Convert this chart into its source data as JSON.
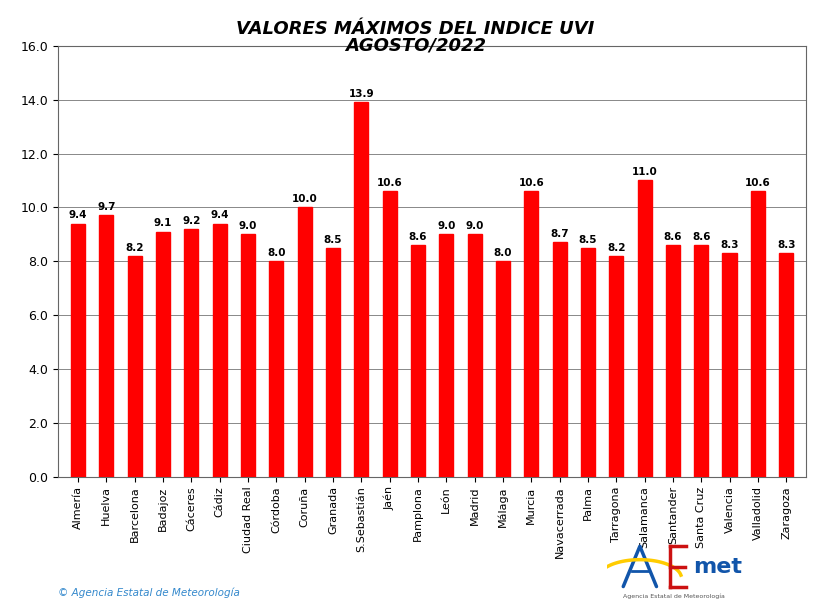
{
  "title_line1": "VALORES MÁXIMOS DEL INDICE UVI",
  "title_line2": "AGOSTO/2022",
  "categories": [
    "Almería",
    "Huelva",
    "Barcelona",
    "Badajoz",
    "Cáceres",
    "Cádiz",
    "Ciudad Real",
    "Córdoba",
    "Coruña",
    "Granada",
    "S.Sebastián",
    "Jaén",
    "Pamplona",
    "León",
    "Madrid",
    "Málaga",
    "Murcia",
    "Navacerrada",
    "Palma",
    "Tarragona",
    "Salamanca",
    "Santander",
    "Santa Cruz",
    "Valencia",
    "Valladolid",
    "Zaragoza"
  ],
  "values": [
    9.4,
    9.7,
    8.2,
    9.1,
    9.2,
    9.4,
    9.0,
    8.0,
    10.0,
    8.5,
    13.9,
    10.6,
    8.6,
    9.0,
    9.0,
    8.0,
    10.6,
    8.7,
    8.5,
    8.2,
    11.0,
    8.6,
    8.6,
    8.3,
    10.6,
    8.3
  ],
  "bar_color": "#FF0000",
  "ylim": [
    0.0,
    16.0
  ],
  "yticks": [
    0.0,
    2.0,
    4.0,
    6.0,
    8.0,
    10.0,
    12.0,
    14.0,
    16.0
  ],
  "grid_color": "#888888",
  "background_color": "#FFFFFF",
  "plot_bg_color": "#FFFFFF",
  "copyright_text": "© Agencia Estatal de Meteorología",
  "value_fontsize": 7.5,
  "label_fontsize": 8.0,
  "title_fontsize": 13,
  "ytick_fontsize": 9
}
